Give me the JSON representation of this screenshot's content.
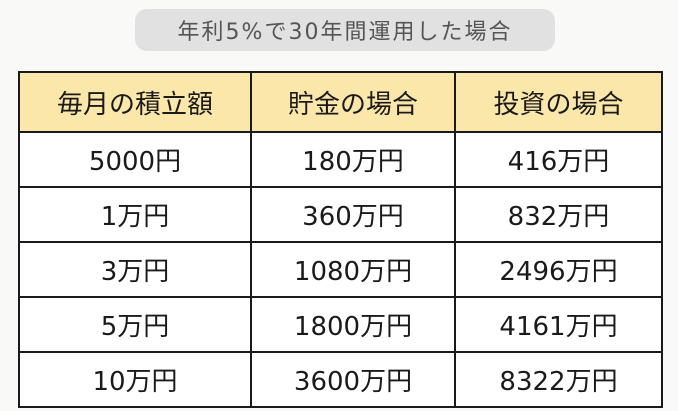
{
  "title": "年利5%で30年間運用した場合",
  "table": {
    "headers": [
      "毎月の積立額",
      "貯金の場合",
      "投資の場合"
    ],
    "rows": [
      [
        "5000円",
        "180万円",
        "416万円"
      ],
      [
        "1万円",
        "360万円",
        "832万円"
      ],
      [
        "3万円",
        "1080万円",
        "2496万円"
      ],
      [
        "5万円",
        "1800万円",
        "4161万円"
      ],
      [
        "10万円",
        "3600万円",
        "8322万円"
      ]
    ]
  },
  "colors": {
    "header_background": "#fbe7aa",
    "title_background": "#e1e1e1",
    "border": "#1a1a1a"
  }
}
